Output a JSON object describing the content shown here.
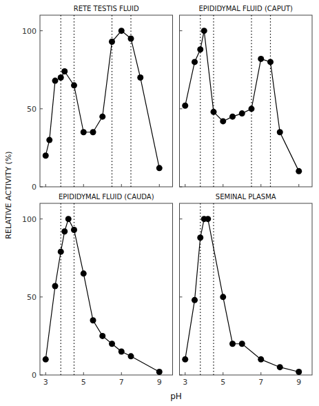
{
  "chart_data": [
    {
      "type": "line",
      "title": "RETE TESTIS FLUID",
      "x_label": "pH",
      "y_label": "RELATIVE ACTIVITY (%)",
      "x": [
        3.0,
        3.2,
        3.5,
        3.8,
        4.0,
        4.5,
        5.0,
        5.5,
        6.0,
        6.5,
        7.0,
        7.5,
        8.0,
        9.0
      ],
      "values": [
        20,
        30,
        68,
        70,
        74,
        65,
        35,
        35,
        45,
        93,
        100,
        95,
        70,
        12
      ],
      "vlines": [
        3.8,
        4.5,
        6.5,
        7.5
      ],
      "xlim": [
        2.7,
        9.7
      ],
      "ylim": [
        0,
        110
      ],
      "xticks": [
        3,
        5,
        7,
        9
      ],
      "yticks": [
        0,
        50,
        100
      ],
      "color": "black",
      "marker": "circle",
      "tick_labels": "y"
    },
    {
      "type": "line",
      "title": "EPIDIDYMAL FLUID (CAPUT)",
      "x": [
        3.0,
        3.5,
        3.8,
        4.0,
        4.5,
        5.0,
        5.5,
        6.0,
        6.5,
        7.0,
        7.5,
        8.0,
        9.0
      ],
      "values": [
        52,
        80,
        88,
        100,
        48,
        42,
        45,
        47,
        50,
        82,
        80,
        35,
        10
      ],
      "vlines": [
        3.8,
        4.5,
        6.5,
        7.5
      ],
      "xlim": [
        2.7,
        9.7
      ],
      "ylim": [
        0,
        110
      ],
      "xticks": [
        3,
        5,
        7,
        9
      ],
      "yticks": [
        0,
        50,
        100
      ],
      "color": "black",
      "marker": "circle",
      "tick_labels": false
    },
    {
      "type": "line",
      "title": "EPIDIDYMAL FLUID (CAUDA)",
      "x": [
        3.0,
        3.5,
        3.8,
        4.0,
        4.2,
        4.5,
        5.0,
        5.5,
        6.0,
        6.5,
        7.0,
        7.5,
        9.0
      ],
      "values": [
        10,
        57,
        79,
        92,
        100,
        93,
        65,
        35,
        25,
        20,
        15,
        12,
        2
      ],
      "vlines": [
        3.8,
        4.5
      ],
      "xlim": [
        2.7,
        9.7
      ],
      "ylim": [
        0,
        110
      ],
      "xticks": [
        3,
        5,
        7,
        9
      ],
      "yticks": [
        0,
        50,
        100
      ],
      "color": "black",
      "marker": "circle",
      "tick_labels": true
    },
    {
      "type": "line",
      "title": "SEMINAL PLASMA",
      "x": [
        3.0,
        3.5,
        3.8,
        4.0,
        4.2,
        5.0,
        5.5,
        6.0,
        7.0,
        8.0,
        9.0
      ],
      "values": [
        10,
        48,
        88,
        100,
        100,
        50,
        20,
        20,
        10,
        5,
        2
      ],
      "vlines": [
        3.8,
        4.5
      ],
      "xlim": [
        2.7,
        9.7
      ],
      "ylim": [
        0,
        110
      ],
      "xticks": [
        3,
        5,
        7,
        9
      ],
      "yticks": [
        0,
        50,
        100
      ],
      "color": "black",
      "marker": "circle",
      "tick_labels": "x"
    }
  ]
}
